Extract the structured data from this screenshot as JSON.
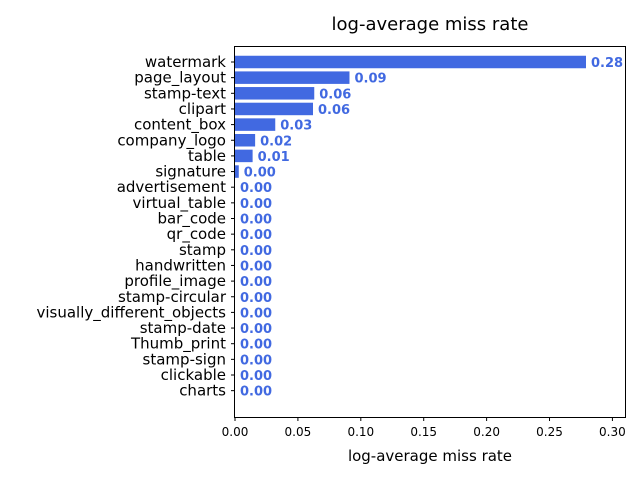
{
  "chart_data": {
    "type": "bar",
    "orientation": "horizontal",
    "title": "log-average miss rate",
    "xlabel": "log-average miss rate",
    "ylabel": "",
    "xlim": [
      0,
      0.31
    ],
    "xticks": [
      "0.00",
      "0.05",
      "0.10",
      "0.15",
      "0.20",
      "0.25",
      "0.30"
    ],
    "grid": false,
    "bar_color": "#4169e1",
    "label_color": "#4169e1",
    "categories": [
      "watermark",
      "page_layout",
      "stamp-text",
      "clipart",
      "content_box",
      "company_logo",
      "table",
      "signature",
      "advertisement",
      "virtual_table",
      "bar_code",
      "qr_code",
      "stamp",
      "handwritten",
      "profile_image",
      "stamp-circular",
      "visually_different_objects",
      "stamp-date",
      "Thumb_print",
      "stamp-sign",
      "clickable",
      "charts"
    ],
    "values": [
      0.279,
      0.091,
      0.063,
      0.062,
      0.032,
      0.016,
      0.014,
      0.003,
      0.0,
      0.0,
      0.0,
      0.0,
      0.0,
      0.0,
      0.0,
      0.0,
      0.0,
      0.0,
      0.0,
      0.0,
      0.0,
      0.0
    ],
    "value_labels": [
      "0.28",
      "0.09",
      "0.06",
      "0.06",
      "0.03",
      "0.02",
      "0.01",
      "0.00",
      "0.00",
      "0.00",
      "0.00",
      "0.00",
      "0.00",
      "0.00",
      "0.00",
      "0.00",
      "0.00",
      "0.00",
      "0.00",
      "0.00",
      "0.00",
      "0.00"
    ]
  }
}
